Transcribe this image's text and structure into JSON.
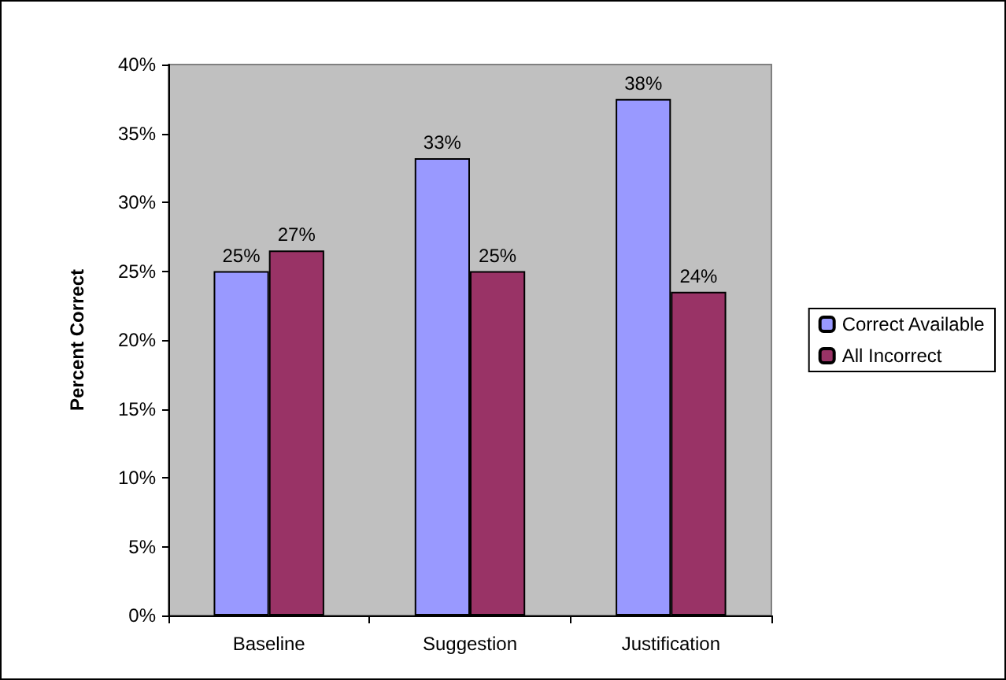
{
  "chart_data": {
    "type": "bar",
    "ylabel": "Percent Correct",
    "categories": [
      "Baseline",
      "Suggestion",
      "Justification"
    ],
    "series": [
      {
        "name": "Correct Available",
        "color": "#9999ff",
        "values": [
          25,
          33.2,
          37.5
        ],
        "value_labels": [
          "25%",
          "33%",
          "38%"
        ]
      },
      {
        "name": "All Incorrect",
        "color": "#993366",
        "values": [
          26.5,
          25,
          23.5
        ],
        "value_labels": [
          "27%",
          "25%",
          "24%"
        ]
      }
    ],
    "ylim": [
      0,
      40
    ],
    "yticks": [
      {
        "value": 0,
        "label": "0%"
      },
      {
        "value": 5,
        "label": "5%"
      },
      {
        "value": 10,
        "label": "10%"
      },
      {
        "value": 15,
        "label": "15%"
      },
      {
        "value": 20,
        "label": "20%"
      },
      {
        "value": 25,
        "label": "25%"
      },
      {
        "value": 30,
        "label": "30%"
      },
      {
        "value": 35,
        "label": "35%"
      },
      {
        "value": 40,
        "label": "40%"
      }
    ],
    "grid": false,
    "legend": "right"
  }
}
